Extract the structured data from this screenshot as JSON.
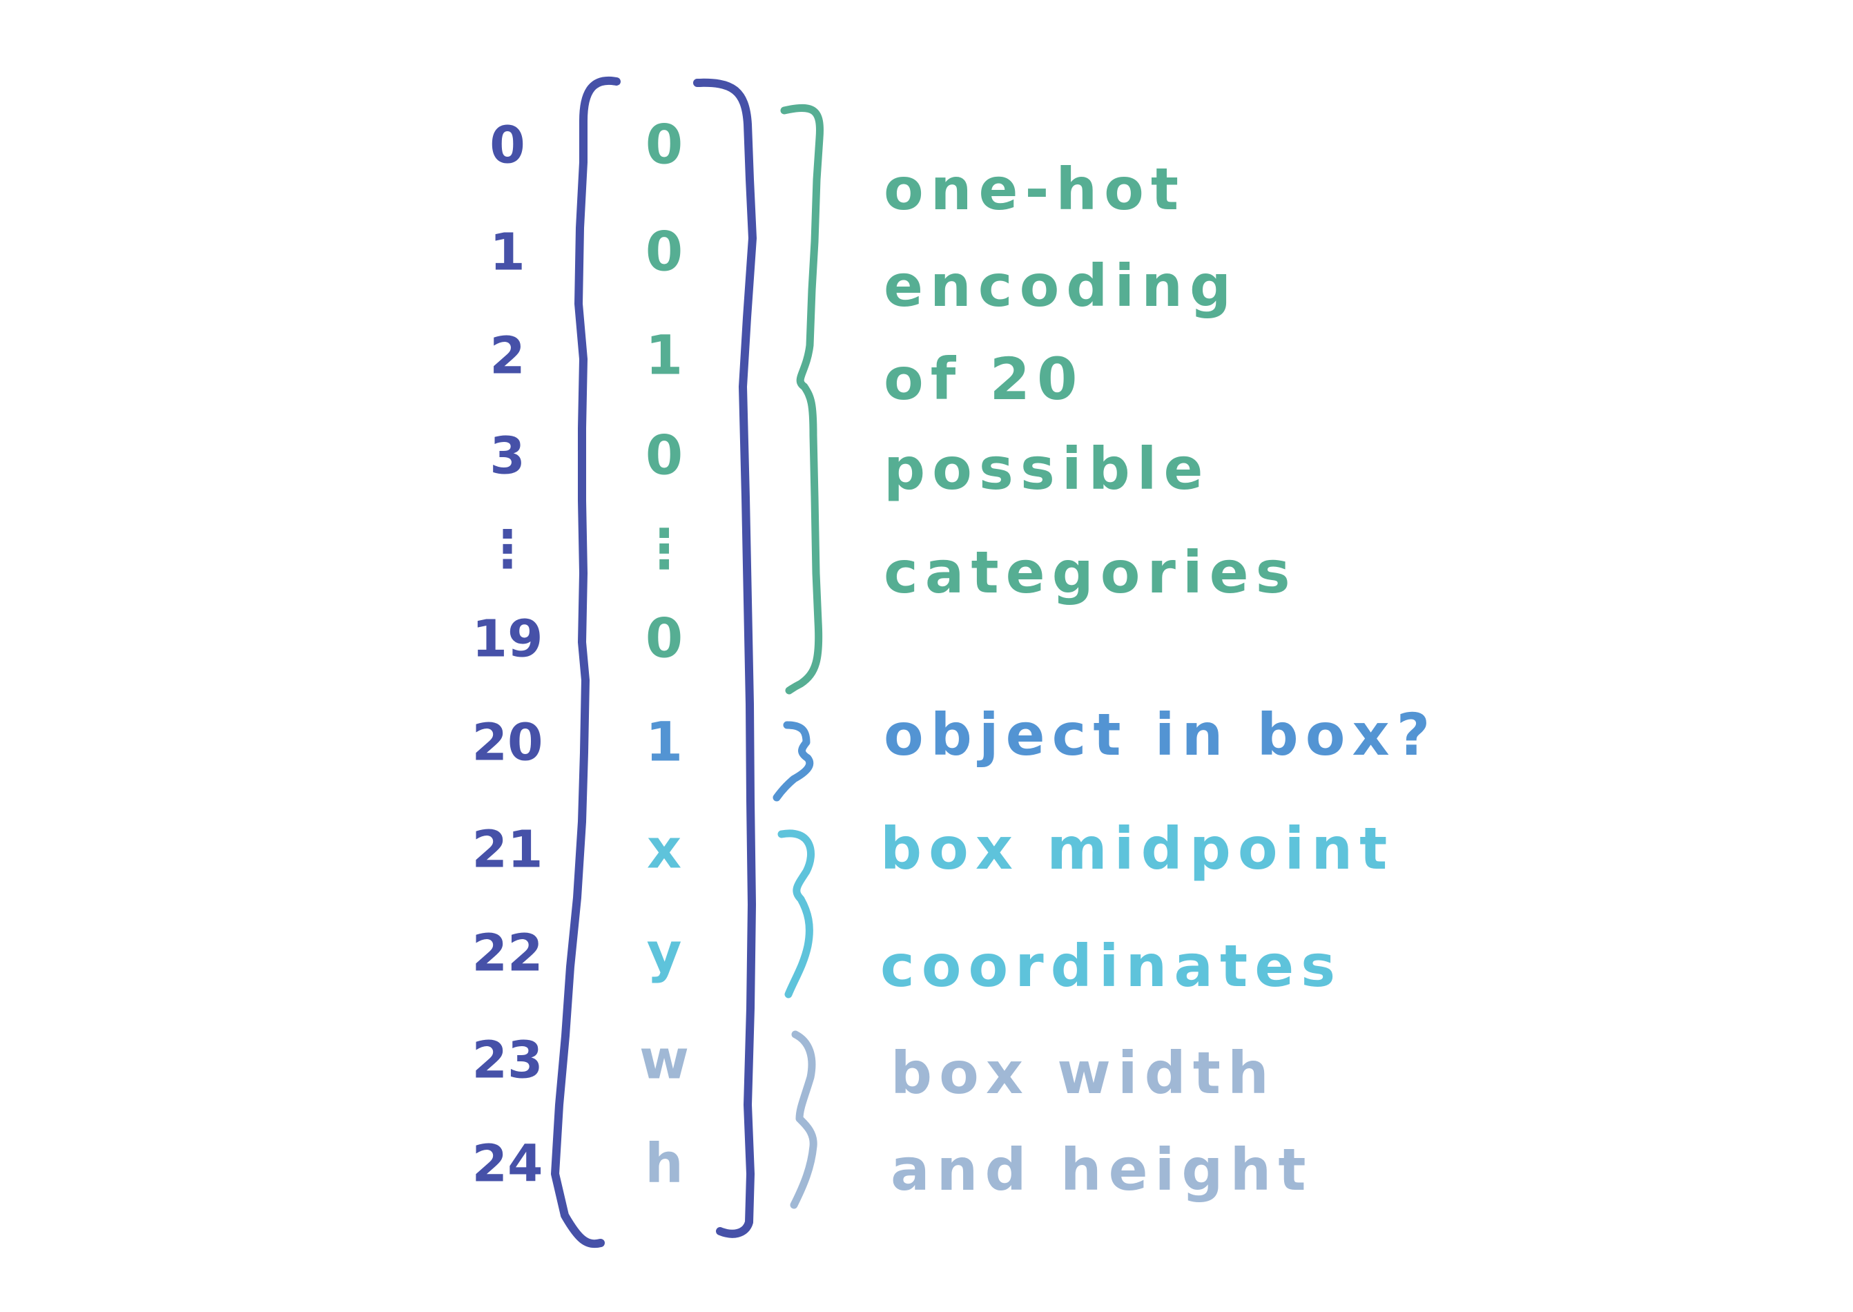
{
  "colors": {
    "index": "#4651A8",
    "bracket": "#4651A8",
    "categories": "#56AE93",
    "object": "#5394D3",
    "midpoint": "#5EC3DB",
    "size": "#A0B8D5"
  },
  "indices": [
    "0",
    "1",
    "2",
    "3",
    "⋮",
    "19",
    "20",
    "21",
    "22",
    "23",
    "24"
  ],
  "values": [
    "0",
    "0",
    "1",
    "0",
    "⋮",
    "0",
    "1",
    "x",
    "y",
    "w",
    "h"
  ],
  "groups": {
    "categories": {
      "lines": [
        "one-hot",
        "encoding",
        "of 20",
        "possible",
        "categories"
      ]
    },
    "object": {
      "lines": [
        "object in box?"
      ]
    },
    "midpoint": {
      "lines": [
        "box midpoint",
        "coordinates"
      ]
    },
    "size": {
      "lines": [
        "box width",
        "and height"
      ]
    }
  }
}
